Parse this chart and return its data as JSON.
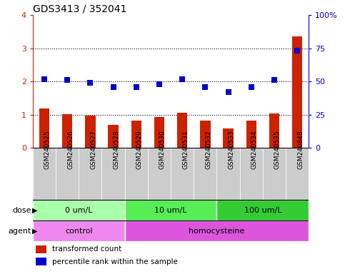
{
  "title": "GDS3413 / 352041",
  "samples": [
    "GSM240525",
    "GSM240526",
    "GSM240527",
    "GSM240528",
    "GSM240529",
    "GSM240530",
    "GSM240531",
    "GSM240532",
    "GSM240533",
    "GSM240534",
    "GSM240535",
    "GSM240848"
  ],
  "red_values": [
    1.18,
    1.02,
    0.97,
    0.7,
    0.83,
    0.93,
    1.05,
    0.82,
    0.58,
    0.82,
    1.03,
    3.35
  ],
  "blue_values_pct": [
    52,
    51,
    49,
    46,
    46,
    48,
    52,
    46,
    42,
    46,
    51,
    73
  ],
  "red_color": "#cc2200",
  "blue_color": "#0000cc",
  "ylim_left": [
    0,
    4
  ],
  "ylim_right": [
    0,
    100
  ],
  "yticks_left": [
    0,
    1,
    2,
    3,
    4
  ],
  "yticks_right": [
    0,
    25,
    50,
    75,
    100
  ],
  "ytick_labels_right": [
    "0",
    "25",
    "50",
    "75",
    "100%"
  ],
  "dose_groups": [
    {
      "label": "0 um/L",
      "start": 0,
      "end": 4,
      "color": "#aaffaa"
    },
    {
      "label": "10 um/L",
      "start": 4,
      "end": 8,
      "color": "#55ee55"
    },
    {
      "label": "100 um/L",
      "start": 8,
      "end": 12,
      "color": "#33cc33"
    }
  ],
  "agent_groups": [
    {
      "label": "control",
      "start": 0,
      "end": 4,
      "color": "#ee88ee"
    },
    {
      "label": "homocysteine",
      "start": 4,
      "end": 12,
      "color": "#dd55dd"
    }
  ],
  "dose_label": "dose",
  "agent_label": "agent",
  "legend_red": "transformed count",
  "legend_blue": "percentile rank within the sample",
  "background_color": "#ffffff",
  "bar_width": 0.45,
  "marker_size": 36,
  "grid_yticks": [
    1,
    2,
    3
  ],
  "sample_bg_color": "#cccccc",
  "sample_bg_alt": "#dddddd"
}
